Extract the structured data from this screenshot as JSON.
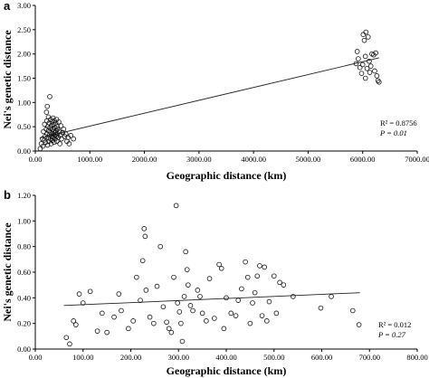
{
  "chart_data": [
    {
      "type": "scatter",
      "panel_label": "a",
      "xlabel": "Geographic distance (km)",
      "ylabel": "Nei's genetic distance",
      "xlim": [
        0,
        7000
      ],
      "ylim": [
        0,
        3.0
      ],
      "x_ticks": [
        "0.00",
        "1000.00",
        "2000.00",
        "3000.00",
        "4000.00",
        "5000.00",
        "6000.00",
        "7000.00"
      ],
      "y_ticks": [
        "0.00",
        "0.50",
        "1.00",
        "1.50",
        "2.00",
        "2.50",
        "3.00"
      ],
      "x_tick_values": [
        0,
        1000,
        2000,
        3000,
        4000,
        5000,
        6000,
        7000
      ],
      "y_tick_values": [
        0,
        0.5,
        1.0,
        1.5,
        2.0,
        2.5,
        3.0
      ],
      "annotations": [
        "R² = 0.8756",
        "P = 0.01"
      ],
      "trendline": {
        "x": [
          80,
          6300
        ],
        "y": [
          0.27,
          1.92
        ]
      },
      "points": [
        [
          90,
          0.05
        ],
        [
          110,
          0.15
        ],
        [
          130,
          0.25
        ],
        [
          140,
          0.1
        ],
        [
          150,
          0.4
        ],
        [
          160,
          0.22
        ],
        [
          170,
          0.55
        ],
        [
          180,
          0.3
        ],
        [
          190,
          0.18
        ],
        [
          200,
          0.45
        ],
        [
          205,
          0.8
        ],
        [
          210,
          0.62
        ],
        [
          215,
          0.35
        ],
        [
          220,
          0.92
        ],
        [
          225,
          0.12
        ],
        [
          230,
          0.5
        ],
        [
          235,
          0.28
        ],
        [
          240,
          0.7
        ],
        [
          245,
          0.42
        ],
        [
          250,
          0.2
        ],
        [
          255,
          0.58
        ],
        [
          260,
          0.33
        ],
        [
          265,
          1.12
        ],
        [
          270,
          0.48
        ],
        [
          275,
          0.25
        ],
        [
          280,
          0.65
        ],
        [
          285,
          0.38
        ],
        [
          290,
          0.15
        ],
        [
          295,
          0.52
        ],
        [
          300,
          0.3
        ],
        [
          305,
          0.6
        ],
        [
          310,
          0.22
        ],
        [
          315,
          0.45
        ],
        [
          320,
          0.35
        ],
        [
          325,
          0.68
        ],
        [
          330,
          0.28
        ],
        [
          335,
          0.4
        ],
        [
          340,
          0.55
        ],
        [
          345,
          0.18
        ],
        [
          350,
          0.62
        ],
        [
          355,
          0.32
        ],
        [
          360,
          0.48
        ],
        [
          365,
          0.25
        ],
        [
          370,
          0.38
        ],
        [
          375,
          0.58
        ],
        [
          380,
          0.42
        ],
        [
          385,
          0.3
        ],
        [
          390,
          0.65
        ],
        [
          395,
          0.2
        ],
        [
          400,
          0.5
        ],
        [
          405,
          0.35
        ],
        [
          410,
          0.45
        ],
        [
          420,
          0.28
        ],
        [
          430,
          0.6
        ],
        [
          440,
          0.4
        ],
        [
          450,
          0.15
        ],
        [
          460,
          0.33
        ],
        [
          470,
          0.52
        ],
        [
          480,
          0.25
        ],
        [
          500,
          0.38
        ],
        [
          520,
          0.45
        ],
        [
          540,
          0.3
        ],
        [
          560,
          0.35
        ],
        [
          580,
          0.2
        ],
        [
          600,
          0.28
        ],
        [
          620,
          0.15
        ],
        [
          650,
          0.32
        ],
        [
          700,
          0.25
        ],
        [
          5880,
          1.8
        ],
        [
          5900,
          2.05
        ],
        [
          5920,
          1.9
        ],
        [
          5950,
          1.72
        ],
        [
          5980,
          1.6
        ],
        [
          6000,
          1.78
        ],
        [
          6010,
          2.4
        ],
        [
          6030,
          2.28
        ],
        [
          6050,
          1.95
        ],
        [
          6060,
          2.45
        ],
        [
          6080,
          1.7
        ],
        [
          6100,
          2.35
        ],
        [
          6120,
          1.85
        ],
        [
          6150,
          1.75
        ],
        [
          6170,
          2.0
        ],
        [
          6200,
          1.98
        ],
        [
          6220,
          1.65
        ],
        [
          6240,
          2.02
        ],
        [
          6260,
          1.55
        ],
        [
          6280,
          1.45
        ],
        [
          6300,
          1.42
        ],
        [
          6050,
          1.5
        ],
        [
          6130,
          1.62
        ]
      ]
    },
    {
      "type": "scatter",
      "panel_label": "b",
      "xlabel": "Geographic distance (km)",
      "ylabel": "Nei's genetic distance",
      "xlim": [
        0,
        800
      ],
      "ylim": [
        0,
        1.2
      ],
      "x_ticks": [
        "0.00",
        "100.00",
        "200.00",
        "300.00",
        "400.00",
        "500.00",
        "600.00",
        "700.00",
        "800.00"
      ],
      "y_ticks": [
        "0.00",
        "0.20",
        "0.40",
        "0.60",
        "0.80",
        "1.00",
        "1.20"
      ],
      "x_tick_values": [
        0,
        100,
        200,
        300,
        400,
        500,
        600,
        700,
        800
      ],
      "y_tick_values": [
        0,
        0.2,
        0.4,
        0.6,
        0.8,
        1.0,
        1.2
      ],
      "annotations": [
        "R² = 0.012",
        "P = 0.27"
      ],
      "trendline": {
        "x": [
          60,
          680
        ],
        "y": [
          0.34,
          0.44
        ]
      },
      "points": [
        [
          65,
          0.09
        ],
        [
          72,
          0.04
        ],
        [
          80,
          0.22
        ],
        [
          85,
          0.19
        ],
        [
          92,
          0.43
        ],
        [
          100,
          0.36
        ],
        [
          115,
          0.45
        ],
        [
          130,
          0.14
        ],
        [
          140,
          0.28
        ],
        [
          150,
          0.13
        ],
        [
          165,
          0.25
        ],
        [
          175,
          0.43
        ],
        [
          180,
          0.3
        ],
        [
          195,
          0.16
        ],
        [
          205,
          0.22
        ],
        [
          212,
          0.56
        ],
        [
          220,
          0.38
        ],
        [
          225,
          0.69
        ],
        [
          228,
          0.94
        ],
        [
          230,
          0.88
        ],
        [
          232,
          0.46
        ],
        [
          240,
          0.25
        ],
        [
          248,
          0.2
        ],
        [
          255,
          0.49
        ],
        [
          262,
          0.8
        ],
        [
          268,
          0.33
        ],
        [
          275,
          0.21
        ],
        [
          280,
          0.16
        ],
        [
          285,
          0.13
        ],
        [
          290,
          0.56
        ],
        [
          295,
          1.12
        ],
        [
          298,
          0.36
        ],
        [
          302,
          0.29
        ],
        [
          305,
          0.2
        ],
        [
          308,
          0.06
        ],
        [
          312,
          0.41
        ],
        [
          315,
          0.76
        ],
        [
          318,
          0.62
        ],
        [
          320,
          0.5
        ],
        [
          325,
          0.34
        ],
        [
          330,
          0.3
        ],
        [
          340,
          0.46
        ],
        [
          345,
          0.41
        ],
        [
          350,
          0.28
        ],
        [
          358,
          0.22
        ],
        [
          365,
          0.55
        ],
        [
          375,
          0.24
        ],
        [
          385,
          0.66
        ],
        [
          390,
          0.63
        ],
        [
          395,
          0.16
        ],
        [
          400,
          0.4
        ],
        [
          410,
          0.28
        ],
        [
          420,
          0.26
        ],
        [
          425,
          0.38
        ],
        [
          432,
          0.47
        ],
        [
          440,
          0.68
        ],
        [
          445,
          0.56
        ],
        [
          450,
          0.2
        ],
        [
          455,
          0.36
        ],
        [
          460,
          0.44
        ],
        [
          465,
          0.57
        ],
        [
          470,
          0.65
        ],
        [
          475,
          0.26
        ],
        [
          480,
          0.64
        ],
        [
          485,
          0.22
        ],
        [
          490,
          0.37
        ],
        [
          500,
          0.57
        ],
        [
          505,
          0.28
        ],
        [
          512,
          0.52
        ],
        [
          520,
          0.5
        ],
        [
          540,
          0.41
        ],
        [
          598,
          0.32
        ],
        [
          620,
          0.41
        ],
        [
          665,
          0.3
        ],
        [
          678,
          0.19
        ]
      ]
    }
  ]
}
